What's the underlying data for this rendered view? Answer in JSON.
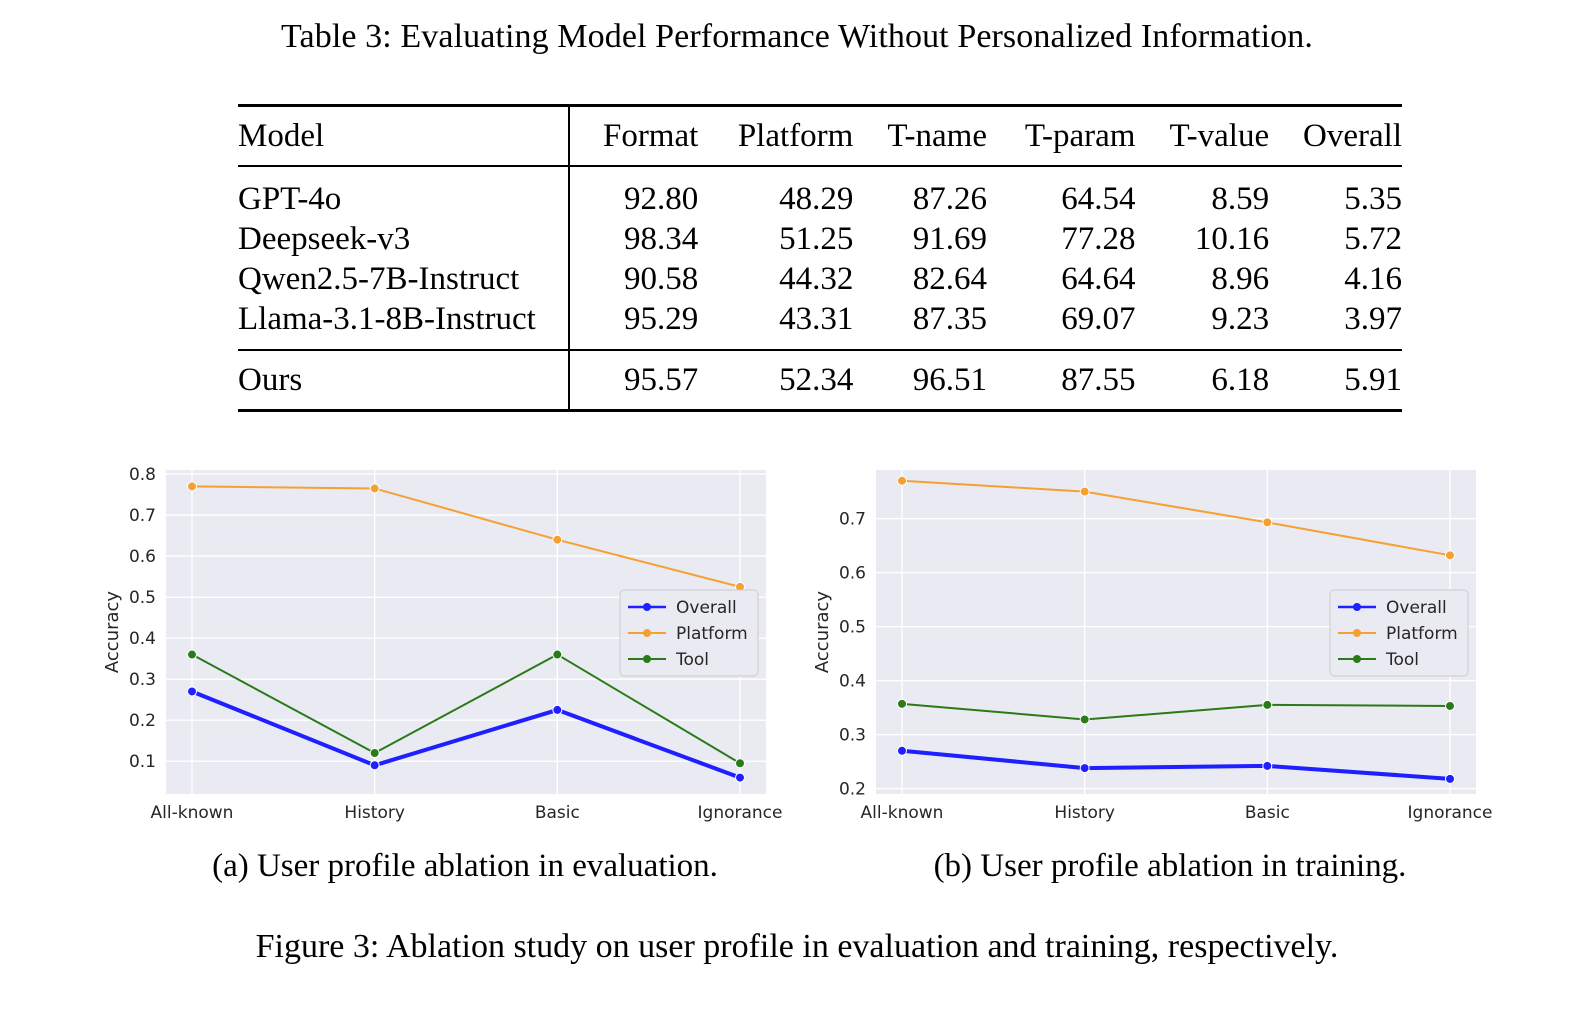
{
  "table": {
    "caption": "Table 3: Evaluating Model Performance Without Personalized Information.",
    "headers": [
      "Model",
      "Format",
      "Platform",
      "T-name",
      "T-param",
      "T-value",
      "Overall"
    ],
    "rows": [
      {
        "model": "GPT-4o",
        "values": [
          "92.80",
          "48.29",
          "87.26",
          "64.54",
          "8.59",
          "5.35"
        ]
      },
      {
        "model": "Deepseek-v3",
        "values": [
          "98.34",
          "51.25",
          "91.69",
          "77.28",
          "10.16",
          "5.72"
        ]
      },
      {
        "model": "Qwen2.5-7B-Instruct",
        "values": [
          "90.58",
          "44.32",
          "82.64",
          "64.64",
          "8.96",
          "4.16"
        ]
      },
      {
        "model": "Llama-3.1-8B-Instruct",
        "values": [
          "95.29",
          "43.31",
          "87.35",
          "69.07",
          "9.23",
          "3.97"
        ]
      }
    ],
    "ours": {
      "model": "Ours",
      "values": [
        "95.57",
        "52.34",
        "96.51",
        "87.55",
        "6.18",
        "5.91"
      ]
    }
  },
  "chart_data": [
    {
      "type": "line",
      "categories": [
        "All-known",
        "History",
        "Basic",
        "Ignorance"
      ],
      "ylabel": "Accuracy",
      "ylim": [
        0.02,
        0.81
      ],
      "yticks": [
        "0.1",
        "0.2",
        "0.3",
        "0.4",
        "0.5",
        "0.6",
        "0.7",
        "0.8"
      ],
      "legend": "center-right",
      "grid": true,
      "series": [
        {
          "name": "Overall",
          "color": "#1f1fff",
          "values": [
            0.27,
            0.09,
            0.225,
            0.06
          ]
        },
        {
          "name": "Platform",
          "color": "#f5a032",
          "values": [
            0.77,
            0.765,
            0.64,
            0.525
          ]
        },
        {
          "name": "Tool",
          "color": "#2a7a1a",
          "values": [
            0.36,
            0.12,
            0.36,
            0.095
          ]
        }
      ],
      "caption": "(a) User profile ablation in evaluation."
    },
    {
      "type": "line",
      "categories": [
        "All-known",
        "History",
        "Basic",
        "Ignorance"
      ],
      "ylabel": "Accuracy",
      "ylim": [
        0.19,
        0.79
      ],
      "yticks": [
        "0.2",
        "0.3",
        "0.4",
        "0.5",
        "0.6",
        "0.7"
      ],
      "legend": "center-right",
      "grid": true,
      "series": [
        {
          "name": "Overall",
          "color": "#1f1fff",
          "values": [
            0.27,
            0.238,
            0.242,
            0.218
          ]
        },
        {
          "name": "Platform",
          "color": "#f5a032",
          "values": [
            0.77,
            0.75,
            0.693,
            0.632
          ]
        },
        {
          "name": "Tool",
          "color": "#2a7a1a",
          "values": [
            0.357,
            0.328,
            0.355,
            0.353
          ]
        }
      ],
      "caption": "(b) User profile ablation in training."
    }
  ],
  "figure_caption": "Figure 3: Ablation study on user profile in evaluation and training, respectively."
}
